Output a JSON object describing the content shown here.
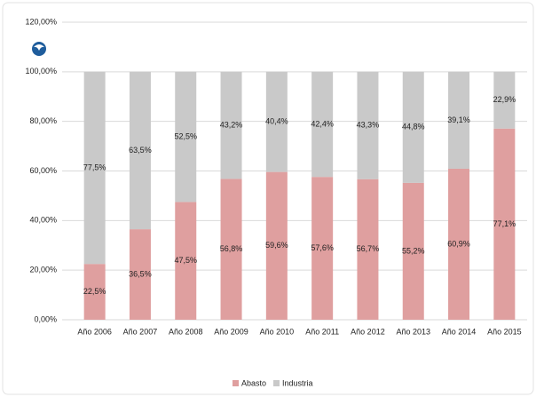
{
  "chart_data": {
    "type": "stacked-bar",
    "categories": [
      "Año 2006",
      "Año 2007",
      "Año 2008",
      "Año 2009",
      "Año 2010",
      "Año 2011",
      "Año 2012",
      "Año 2013",
      "Año 2014",
      "Año 2015"
    ],
    "series": [
      {
        "name": "Abasto",
        "color": "#df9f9f",
        "values": [
          22.5,
          36.5,
          47.5,
          56.8,
          59.6,
          57.6,
          56.7,
          55.2,
          60.9,
          77.1
        ],
        "value_labels": [
          "22,5%",
          "36,5%",
          "47,5%",
          "56,8%",
          "59,6%",
          "57,6%",
          "56,7%",
          "55,2%",
          "60,9%",
          "77,1%"
        ]
      },
      {
        "name": "Industria",
        "color": "#c9c9c9",
        "values": [
          77.5,
          63.5,
          52.5,
          43.2,
          40.4,
          42.4,
          43.3,
          44.8,
          39.1,
          22.9
        ],
        "value_labels": [
          "77,5%",
          "63,5%",
          "52,5%",
          "43,2%",
          "40,4%",
          "42,4%",
          "43,3%",
          "44,8%",
          "39,1%",
          "22,9%"
        ]
      }
    ],
    "ylim": [
      0,
      120
    ],
    "yticks": [
      {
        "value": 0,
        "label": "0,00%"
      },
      {
        "value": 20,
        "label": "20,00%"
      },
      {
        "value": 40,
        "label": "40,00%"
      },
      {
        "value": 60,
        "label": "60,00%"
      },
      {
        "value": 80,
        "label": "80,00%"
      },
      {
        "value": 100,
        "label": "100,00%"
      },
      {
        "value": 120,
        "label": "120,00%"
      }
    ],
    "grid": true,
    "legend": "bottom"
  }
}
